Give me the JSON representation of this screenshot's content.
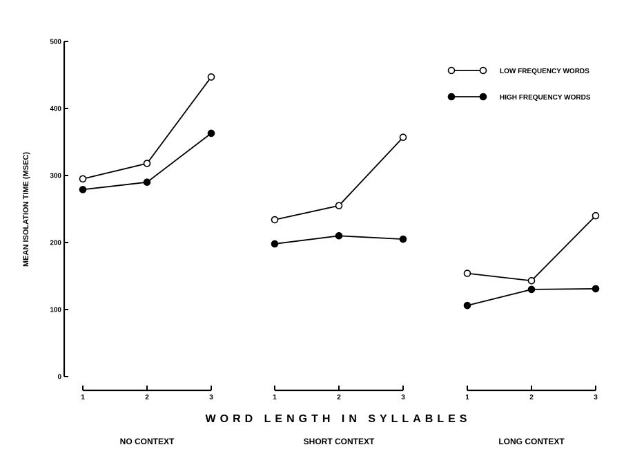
{
  "colors": {
    "ink": "#000000",
    "background": "#ffffff",
    "open_marker_fill": "#ffffff"
  },
  "chart_data": {
    "type": "line",
    "title": "",
    "ylabel": "MEAN ISOLATION TIME (MSEC)",
    "xlabel": "WORD LENGTH IN SYLLABLES",
    "ylim": [
      0,
      500
    ],
    "yticks": [
      0,
      100,
      200,
      300,
      400,
      500
    ],
    "grid": false,
    "legend_position": "top-right",
    "categories": [
      "1",
      "2",
      "3"
    ],
    "series": [
      {
        "name": "LOW FREQUENCY WORDS",
        "marker": "open-circle"
      },
      {
        "name": "HIGH FREQUENCY WORDS",
        "marker": "filled-circle"
      }
    ],
    "panels": [
      {
        "label": "NO CONTEXT",
        "values": {
          "LOW FREQUENCY WORDS": [
            295,
            318,
            447
          ],
          "HIGH FREQUENCY WORDS": [
            279,
            290,
            363
          ]
        }
      },
      {
        "label": "SHORT CONTEXT",
        "values": {
          "LOW FREQUENCY WORDS": [
            234,
            255,
            357
          ],
          "HIGH FREQUENCY WORDS": [
            198,
            210,
            205
          ]
        }
      },
      {
        "label": "LONG CONTEXT",
        "values": {
          "LOW FREQUENCY WORDS": [
            154,
            143,
            240
          ],
          "HIGH FREQUENCY WORDS": [
            106,
            130,
            131
          ]
        }
      }
    ]
  }
}
